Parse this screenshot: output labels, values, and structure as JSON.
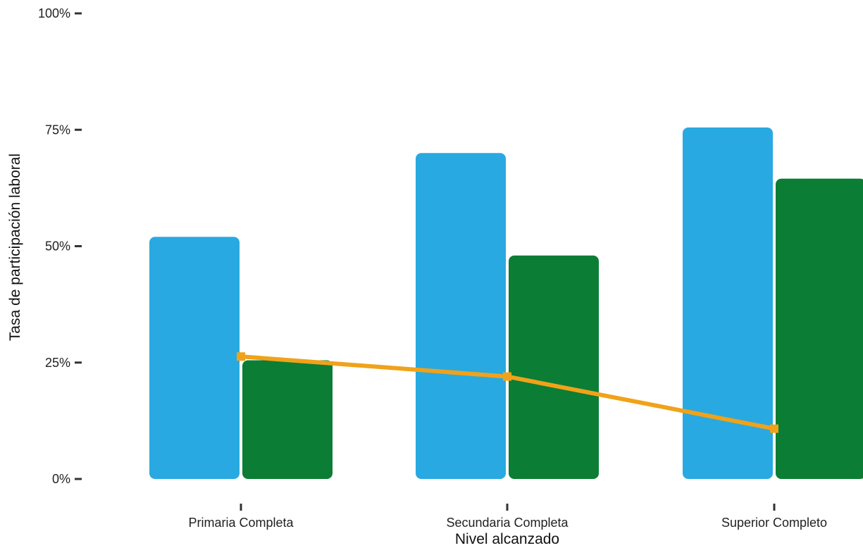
{
  "chart_data": {
    "type": "bar",
    "xlabel": "Nivel alcanzado",
    "ylabel": "Tasa de participación laboral",
    "categories": [
      "Primaria Completa",
      "Secundaria Completa",
      "Superior Completo"
    ],
    "ylim": [
      0,
      100
    ],
    "yticks": [
      0,
      25,
      50,
      75,
      100
    ],
    "ytick_labels": [
      "0%",
      "25%",
      "50%",
      "75%",
      "100%"
    ],
    "grid": false,
    "legend": "none",
    "series": [
      {
        "kind": "bar",
        "color": "#29a9e1",
        "values": [
          52,
          70,
          75.5
        ]
      },
      {
        "kind": "bar",
        "color": "#0b7d35",
        "values": [
          25.5,
          48,
          64.5
        ]
      },
      {
        "kind": "line",
        "color": "#f0a21a",
        "values": [
          26.3,
          22,
          10.8
        ]
      }
    ]
  }
}
